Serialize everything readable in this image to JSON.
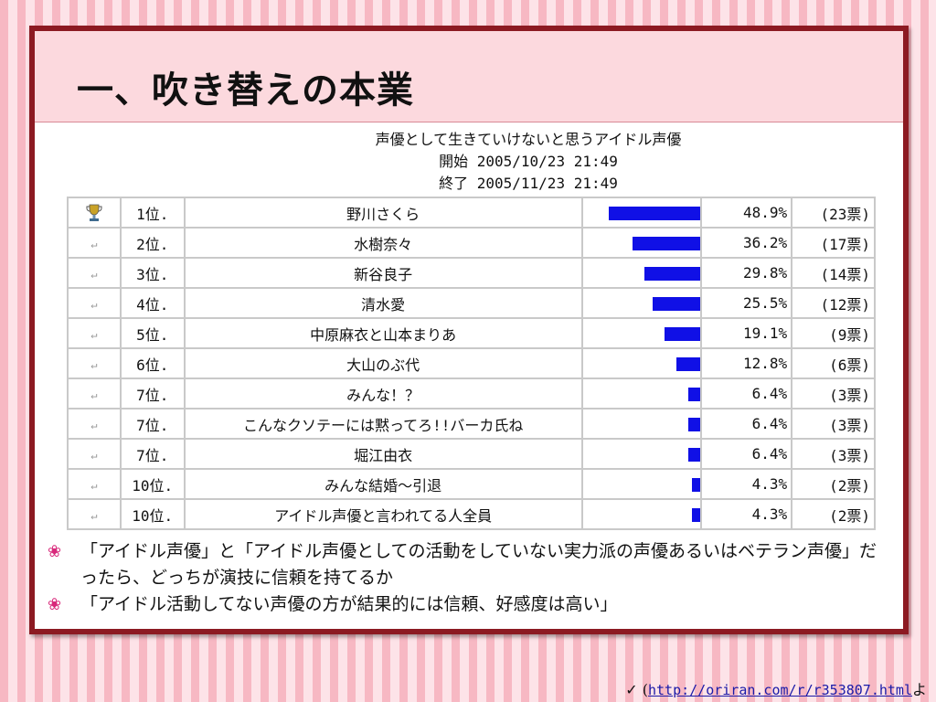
{
  "slide": {
    "title": "一、吹き替えの本業"
  },
  "poll": {
    "heading": "声優として生きていけないと思うアイドル声優",
    "start": "開始 2005/10/23 21:49",
    "end": "終了 2005/11/23 21:49",
    "rows": [
      {
        "rank": "1位.",
        "name": "野川さくら",
        "pct": "48.9%",
        "votes": "(23票)",
        "share": 48.9,
        "trophy": true
      },
      {
        "rank": "2位.",
        "name": "水樹奈々",
        "pct": "36.2%",
        "votes": "(17票)",
        "share": 36.2,
        "trophy": false
      },
      {
        "rank": "3位.",
        "name": "新谷良子",
        "pct": "29.8%",
        "votes": "(14票)",
        "share": 29.8,
        "trophy": false
      },
      {
        "rank": "4位.",
        "name": "清水愛",
        "pct": "25.5%",
        "votes": "(12票)",
        "share": 25.5,
        "trophy": false
      },
      {
        "rank": "5位.",
        "name": "中原麻衣と山本まりあ",
        "pct": "19.1%",
        "votes": "(9票)",
        "share": 19.1,
        "trophy": false
      },
      {
        "rank": "6位.",
        "name": "大山のぶ代",
        "pct": "12.8%",
        "votes": "(6票)",
        "share": 12.8,
        "trophy": false
      },
      {
        "rank": "7位.",
        "name": "みんな！？",
        "pct": "6.4%",
        "votes": "(3票)",
        "share": 6.4,
        "trophy": false
      },
      {
        "rank": "7位.",
        "name": "こんなクソテーには黙ってろ!!バーカ氏ね",
        "pct": "6.4%",
        "votes": "(3票)",
        "share": 6.4,
        "trophy": false
      },
      {
        "rank": "7位.",
        "name": "堀江由衣",
        "pct": "6.4%",
        "votes": "(3票)",
        "share": 6.4,
        "trophy": false
      },
      {
        "rank": "10位.",
        "name": "みんな結婚～引退",
        "pct": "4.3%",
        "votes": "(2票)",
        "share": 4.3,
        "trophy": false
      },
      {
        "rank": "10位.",
        "name": "アイドル声優と言われてる人全員",
        "pct": "4.3%",
        "votes": "(2票)",
        "share": 4.3,
        "trophy": false
      }
    ],
    "bar_color": "#1010e6"
  },
  "bullets": [
    {
      "icon": "flower-icon",
      "text": "「アイドル声優」と「アイドル声優としての活動をしていない実力派の声優あるいはベテラン声優」だったら、どっちが演技に信頼を持てるか"
    },
    {
      "icon": "flower-icon",
      "text": "「アイドル活動してない声優の方が結果的には信頼、好感度は高い」"
    }
  ],
  "footer": {
    "check_icon": "check-icon",
    "prefix": "(",
    "link": "http://oriran.com/r/r353807.html",
    "suffix": "よ"
  },
  "colors": {
    "frame": "#8c1a22",
    "title_band": "#fcd9de",
    "bullet": "#d8287a"
  }
}
